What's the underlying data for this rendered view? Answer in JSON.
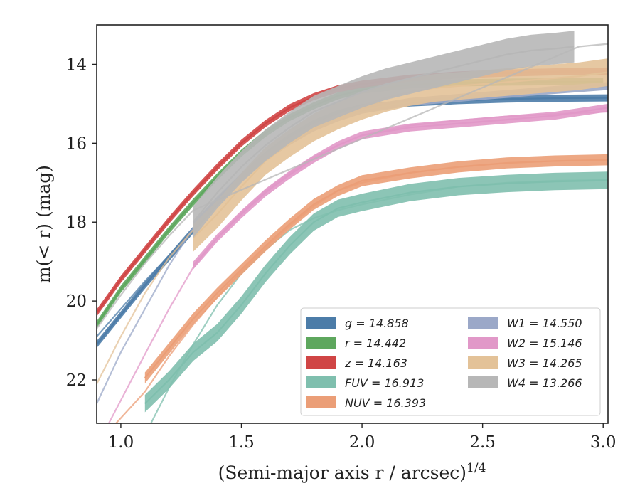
{
  "chart_data": {
    "type": "line",
    "xlabel": "(Semi-major axis r / arcsec)",
    "xlabel_exp": "1/4",
    "ylabel": "m(< r) (mag)",
    "xlim": [
      0.9,
      3.02
    ],
    "ylim": [
      23.1,
      13.0
    ],
    "y_inverted": true,
    "grid": false,
    "legend_position": "bottom-right",
    "xticks": [
      "1.0",
      "1.5",
      "2.0",
      "2.5",
      "3.0"
    ],
    "yticks": [
      "14",
      "16",
      "18",
      "20",
      "22"
    ],
    "series": [
      {
        "name": "g = 14.858",
        "color": "#4c7ca8",
        "band": 0.09,
        "x": [
          0.9,
          1.0,
          1.1,
          1.2,
          1.3,
          1.4,
          1.5,
          1.6,
          1.7,
          1.8,
          1.9,
          2.0,
          2.2,
          2.4,
          2.6,
          2.8,
          3.02
        ],
        "y": [
          21.1,
          20.35,
          19.6,
          18.9,
          18.2,
          17.5,
          16.85,
          16.3,
          15.85,
          15.5,
          15.25,
          15.1,
          14.98,
          14.92,
          14.88,
          14.86,
          14.85
        ],
        "model_x": [
          0.9,
          1.0,
          1.1,
          1.2,
          1.3,
          1.4,
          1.5,
          1.6,
          1.7,
          1.8,
          1.9,
          2.0,
          2.2,
          2.4,
          2.6,
          2.8,
          3.02
        ],
        "model_y": [
          20.9,
          20.2,
          19.5,
          18.85,
          18.2,
          17.55,
          16.95,
          16.4,
          15.95,
          15.55,
          15.28,
          15.1,
          14.95,
          14.85,
          14.72,
          14.6,
          14.52
        ]
      },
      {
        "name": "r = 14.442",
        "color": "#5ea75e",
        "band": 0.09,
        "x": [
          0.9,
          1.0,
          1.1,
          1.2,
          1.3,
          1.4,
          1.5,
          1.6,
          1.7,
          1.8,
          1.9,
          2.0,
          2.2,
          2.4,
          2.6,
          2.8,
          3.0
        ],
        "y": [
          20.6,
          19.7,
          18.95,
          18.2,
          17.5,
          16.85,
          16.25,
          15.75,
          15.35,
          15.05,
          14.8,
          14.65,
          14.52,
          14.47,
          14.45,
          14.44,
          14.44
        ],
        "model_x": [],
        "model_y": []
      },
      {
        "name": "z = 14.163",
        "color": "#d04545",
        "band": 0.09,
        "x": [
          0.9,
          1.0,
          1.1,
          1.2,
          1.3,
          1.4,
          1.5,
          1.6,
          1.7,
          1.8,
          1.9,
          2.0,
          2.2,
          2.4,
          2.6,
          2.8,
          3.02
        ],
        "y": [
          20.3,
          19.45,
          18.7,
          17.95,
          17.25,
          16.6,
          16.0,
          15.5,
          15.1,
          14.82,
          14.62,
          14.5,
          14.35,
          14.27,
          14.22,
          14.19,
          14.17
        ],
        "model_x": [],
        "model_y": []
      },
      {
        "name": "FUV = 16.913",
        "color": "#7fbfae",
        "band": 0.22,
        "x": [
          1.1,
          1.2,
          1.3,
          1.4,
          1.5,
          1.6,
          1.7,
          1.8,
          1.9,
          2.0,
          2.2,
          2.4,
          2.6,
          2.8,
          3.02
        ],
        "y": [
          22.6,
          22.0,
          21.3,
          20.8,
          20.1,
          19.3,
          18.6,
          18.0,
          17.65,
          17.5,
          17.25,
          17.1,
          17.02,
          16.97,
          16.94
        ],
        "model_x": [
          1.1,
          1.2,
          1.3,
          1.4,
          1.5,
          1.6,
          1.7,
          1.8,
          1.9,
          2.0,
          2.2,
          2.4,
          2.6,
          2.8,
          3.02
        ],
        "model_y": [
          23.4,
          22.2,
          21.1,
          20.1,
          19.3,
          18.7,
          18.2,
          17.9,
          17.7,
          17.55,
          17.3,
          17.1,
          17.0,
          16.95,
          16.93
        ]
      },
      {
        "name": "NUV = 16.393",
        "color": "#eb9e77",
        "band": 0.14,
        "x": [
          1.1,
          1.2,
          1.3,
          1.4,
          1.5,
          1.6,
          1.7,
          1.8,
          1.9,
          2.0,
          2.2,
          2.4,
          2.6,
          2.8,
          3.02
        ],
        "y": [
          21.95,
          21.2,
          20.45,
          19.8,
          19.2,
          18.6,
          18.05,
          17.55,
          17.2,
          16.95,
          16.75,
          16.6,
          16.5,
          16.45,
          16.42
        ],
        "model_x": [
          0.95,
          1.1,
          1.2,
          1.3,
          1.4,
          1.5,
          1.6,
          1.7,
          1.8,
          1.9,
          2.0,
          2.2,
          2.4,
          2.6,
          2.8,
          3.02
        ],
        "model_y": [
          23.3,
          22.3,
          21.4,
          20.6,
          19.9,
          19.25,
          18.65,
          18.1,
          17.6,
          17.2,
          17.0,
          16.75,
          16.6,
          16.5,
          16.45,
          16.42
        ]
      },
      {
        "name": "W1 = 14.550",
        "color": "#9ba8c8",
        "band": 0.1,
        "x": [
          1.3,
          1.4,
          1.5,
          1.6,
          1.7,
          1.8,
          1.9,
          2.0,
          2.2,
          2.4,
          2.6,
          2.8,
          3.02
        ],
        "y": [
          18.1,
          17.45,
          16.85,
          16.35,
          15.95,
          15.6,
          15.35,
          15.15,
          14.95,
          14.85,
          14.75,
          14.65,
          14.55
        ],
        "model_x": [
          0.9,
          1.0,
          1.1,
          1.2,
          1.3
        ],
        "model_y": [
          22.6,
          21.3,
          20.2,
          19.1,
          18.15
        ]
      },
      {
        "name": "W2 = 15.146",
        "color": "#e198c8",
        "band": 0.1,
        "x": [
          1.3,
          1.4,
          1.5,
          1.6,
          1.7,
          1.8,
          1.9,
          2.0,
          2.2,
          2.4,
          2.6,
          2.8,
          3.02
        ],
        "y": [
          19.1,
          18.4,
          17.8,
          17.25,
          16.8,
          16.4,
          16.05,
          15.8,
          15.6,
          15.5,
          15.4,
          15.3,
          15.1
        ],
        "model_x": [
          0.95,
          1.1,
          1.2,
          1.3,
          1.4,
          1.5,
          1.6,
          1.7,
          1.8,
          1.9,
          2.0,
          2.2,
          2.4,
          2.6,
          2.8,
          3.02
        ],
        "model_y": [
          23.1,
          21.35,
          20.2,
          19.15,
          18.4,
          17.75,
          17.2,
          16.75,
          16.35,
          16.05,
          15.8,
          15.55,
          15.42,
          15.32,
          15.26,
          15.2
        ]
      },
      {
        "name": "W3 = 14.265",
        "color": "#e3c298",
        "band": 0.35,
        "x": [
          1.3,
          1.4,
          1.5,
          1.6,
          1.7,
          1.8,
          1.9,
          2.0,
          2.1,
          2.2,
          2.3,
          2.4,
          2.5,
          2.6,
          2.7,
          2.8,
          2.9,
          3.02
        ],
        "y": [
          18.4,
          17.8,
          17.1,
          16.45,
          16.0,
          15.6,
          15.3,
          15.05,
          14.85,
          14.7,
          14.6,
          14.55,
          14.5,
          14.45,
          14.4,
          14.35,
          14.3,
          14.2
        ],
        "model_x": [
          0.9,
          1.0,
          1.1,
          1.2,
          1.3
        ],
        "model_y": [
          22.1,
          20.9,
          19.8,
          18.9,
          18.2
        ]
      },
      {
        "name": "W4 = 13.266",
        "color": "#b7b7b7",
        "band": 0.4,
        "x": [
          1.3,
          1.4,
          1.5,
          1.6,
          1.7,
          1.8,
          1.9,
          2.0,
          2.1,
          2.2,
          2.3,
          2.4,
          2.5,
          2.6,
          2.7,
          2.8,
          2.88
        ],
        "y": [
          18.0,
          17.25,
          16.6,
          16.05,
          15.6,
          15.2,
          14.95,
          14.7,
          14.5,
          14.35,
          14.2,
          14.05,
          13.9,
          13.75,
          13.65,
          13.6,
          13.55
        ],
        "model_x": [
          0.9,
          1.0,
          1.1,
          1.2,
          1.3,
          2.9,
          3.02
        ],
        "model_y": [
          20.7,
          19.85,
          19.05,
          18.35,
          17.7,
          13.55,
          13.48
        ]
      }
    ]
  }
}
